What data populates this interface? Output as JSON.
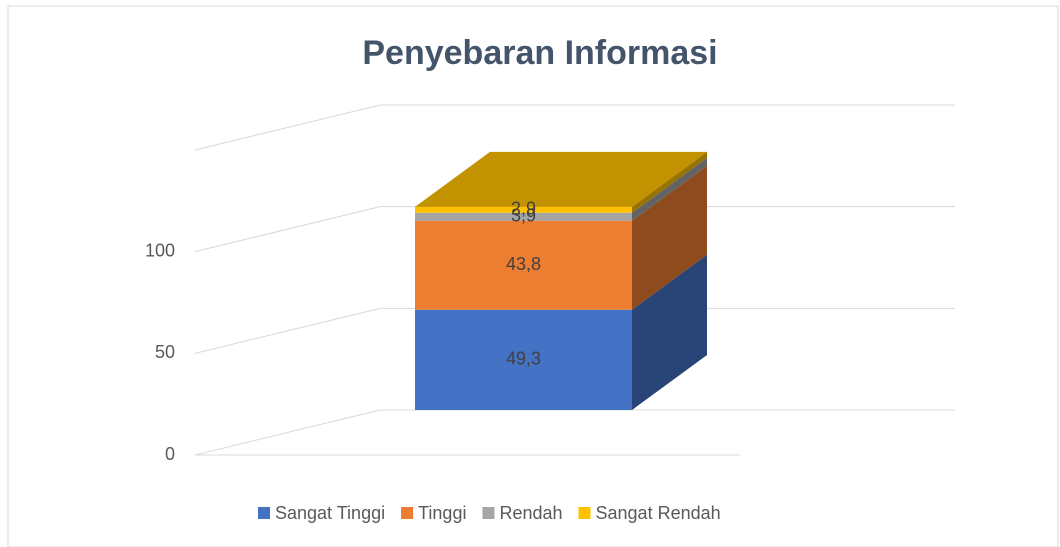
{
  "chart_data": {
    "type": "bar3d_stacked",
    "title": "Penyebaran Informasi",
    "categories": [
      null
    ],
    "series": [
      {
        "name": "Sangat Tinggi",
        "color": "#4472c4",
        "values": [
          49.3
        ],
        "value_labels": [
          "49,3"
        ]
      },
      {
        "name": "Tinggi",
        "color": "#ed7d31",
        "values": [
          43.8
        ],
        "value_labels": [
          "43,8"
        ]
      },
      {
        "name": "Rendah",
        "color": "#a5a5a5",
        "values": [
          3.9
        ],
        "value_labels": [
          "3,9"
        ]
      },
      {
        "name": "Sangat Rendah",
        "color": "#ffc000",
        "values": [
          2.9
        ],
        "value_labels": [
          "2,9"
        ]
      }
    ],
    "ylim": [
      0,
      150
    ],
    "yticks": [
      0,
      50,
      100
    ],
    "grid": true,
    "legend": "bottom"
  }
}
